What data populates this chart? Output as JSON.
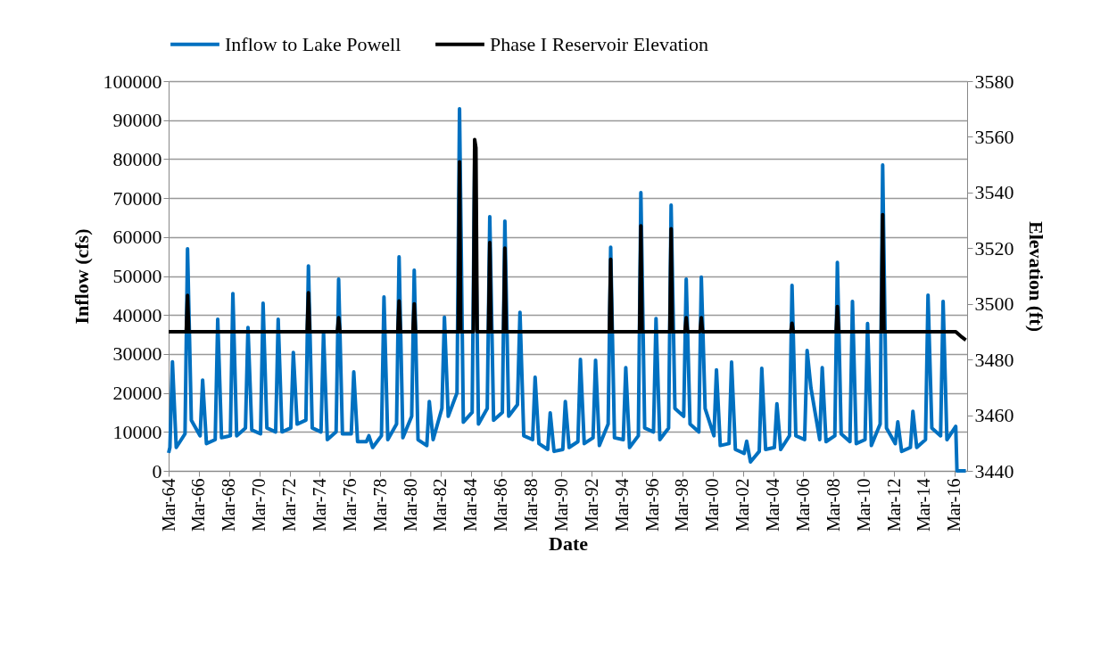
{
  "chart_data": {
    "type": "line",
    "xlabel": "Date",
    "ylabel": "Inflow (cfs)",
    "y2label": "Elevation (ft)",
    "xlim": [
      "1964-03",
      "2017-01"
    ],
    "xticks": [
      {
        "value": "1964-03",
        "label": "Mar-64"
      },
      {
        "value": "1966-03",
        "label": "Mar-66"
      },
      {
        "value": "1968-03",
        "label": "Mar-68"
      },
      {
        "value": "1970-03",
        "label": "Mar-70"
      },
      {
        "value": "1972-03",
        "label": "Mar-72"
      },
      {
        "value": "1974-03",
        "label": "Mar-74"
      },
      {
        "value": "1976-03",
        "label": "Mar-76"
      },
      {
        "value": "1978-03",
        "label": "Mar-78"
      },
      {
        "value": "1980-03",
        "label": "Mar-80"
      },
      {
        "value": "1982-03",
        "label": "Mar-82"
      },
      {
        "value": "1984-03",
        "label": "Mar-84"
      },
      {
        "value": "1986-03",
        "label": "Mar-86"
      },
      {
        "value": "1988-03",
        "label": "Mar-88"
      },
      {
        "value": "1990-03",
        "label": "Mar-90"
      },
      {
        "value": "1992-03",
        "label": "Mar-92"
      },
      {
        "value": "1994-03",
        "label": "Mar-94"
      },
      {
        "value": "1996-03",
        "label": "Mar-96"
      },
      {
        "value": "1998-03",
        "label": "Mar-98"
      },
      {
        "value": "2000-03",
        "label": "Mar-00"
      },
      {
        "value": "2002-03",
        "label": "Mar-02"
      },
      {
        "value": "2004-03",
        "label": "Mar-04"
      },
      {
        "value": "2006-03",
        "label": "Mar-06"
      },
      {
        "value": "2008-03",
        "label": "Mar-08"
      },
      {
        "value": "2010-03",
        "label": "Mar-10"
      },
      {
        "value": "2012-03",
        "label": "Mar-12"
      },
      {
        "value": "2014-03",
        "label": "Mar-14"
      },
      {
        "value": "2016-03",
        "label": "Mar-16"
      }
    ],
    "ylim": [
      0,
      100000
    ],
    "yticks": [
      0,
      10000,
      20000,
      30000,
      40000,
      50000,
      60000,
      70000,
      80000,
      90000,
      100000
    ],
    "y2lim": [
      3440,
      3580
    ],
    "y2ticks": [
      3440,
      3460,
      3480,
      3500,
      3520,
      3540,
      3560,
      3580
    ],
    "grid": "y",
    "legend": "top",
    "line_style": "solid",
    "series": [
      {
        "name": "Inflow to Lake Powell",
        "color": "#0070c0",
        "x": [
          "1964-03",
          "1964-04",
          "1964-06",
          "1964-09",
          "1965-04",
          "1965-06",
          "1965-09",
          "1966-04",
          "1966-06",
          "1966-09",
          "1967-04",
          "1967-06",
          "1967-09",
          "1968-04",
          "1968-06",
          "1968-09",
          "1969-04",
          "1969-06",
          "1969-09",
          "1970-04",
          "1970-06",
          "1970-09",
          "1971-04",
          "1971-06",
          "1971-09",
          "1972-04",
          "1972-06",
          "1972-09",
          "1973-04",
          "1973-06",
          "1973-09",
          "1974-04",
          "1974-06",
          "1974-09",
          "1975-04",
          "1975-06",
          "1975-09",
          "1976-04",
          "1976-06",
          "1976-09",
          "1977-04",
          "1977-06",
          "1977-09",
          "1978-04",
          "1978-06",
          "1978-09",
          "1979-04",
          "1979-06",
          "1979-09",
          "1980-04",
          "1980-06",
          "1980-09",
          "1981-04",
          "1981-06",
          "1981-09",
          "1982-04",
          "1982-06",
          "1982-09",
          "1983-04",
          "1983-06",
          "1983-09",
          "1984-04",
          "1984-06",
          "1984-09",
          "1985-04",
          "1985-06",
          "1985-09",
          "1986-04",
          "1986-06",
          "1986-09",
          "1987-04",
          "1987-06",
          "1987-09",
          "1988-04",
          "1988-06",
          "1988-09",
          "1989-04",
          "1989-06",
          "1989-09",
          "1990-04",
          "1990-06",
          "1990-09",
          "1991-04",
          "1991-06",
          "1991-09",
          "1992-04",
          "1992-06",
          "1992-09",
          "1993-04",
          "1993-06",
          "1993-09",
          "1994-04",
          "1994-06",
          "1994-09",
          "1995-04",
          "1995-06",
          "1995-09",
          "1996-04",
          "1996-06",
          "1996-09",
          "1997-04",
          "1997-06",
          "1997-09",
          "1998-04",
          "1998-06",
          "1998-09",
          "1999-04",
          "1999-06",
          "1999-09",
          "2000-04",
          "2000-06",
          "2000-09",
          "2001-04",
          "2001-06",
          "2001-09",
          "2002-04",
          "2002-06",
          "2002-09",
          "2003-04",
          "2003-06",
          "2003-09",
          "2004-04",
          "2004-06",
          "2004-09",
          "2005-04",
          "2005-06",
          "2005-09",
          "2006-04",
          "2006-06",
          "2006-09",
          "2007-04",
          "2007-06",
          "2007-09",
          "2008-04",
          "2008-06",
          "2008-09",
          "2009-04",
          "2009-06",
          "2009-09",
          "2010-04",
          "2010-06",
          "2010-09",
          "2011-04",
          "2011-06",
          "2011-09",
          "2012-04",
          "2012-06",
          "2012-09",
          "2013-04",
          "2013-06",
          "2013-09",
          "2014-04",
          "2014-06",
          "2014-09",
          "2015-04",
          "2015-06",
          "2015-09",
          "2016-04",
          "2016-05",
          "2016-12"
        ],
        "values": [
          4600,
          6000,
          28000,
          6000,
          9500,
          57000,
          13000,
          9000,
          23300,
          7000,
          8000,
          38900,
          8500,
          9000,
          45500,
          9000,
          11000,
          36800,
          10500,
          9500,
          43000,
          11000,
          10000,
          38900,
          10000,
          11000,
          30400,
          12000,
          13000,
          52600,
          11000,
          10000,
          35700,
          8000,
          10000,
          49200,
          9500,
          9500,
          25400,
          7500,
          7500,
          9000,
          6000,
          9000,
          44600,
          8000,
          12000,
          54900,
          8500,
          14000,
          51500,
          8000,
          6500,
          17800,
          8000,
          16000,
          39400,
          14000,
          20000,
          92900,
          12500,
          15000,
          80000,
          12000,
          16000,
          65200,
          13000,
          15000,
          64100,
          14000,
          17000,
          40700,
          9000,
          8000,
          24000,
          7000,
          5500,
          14900,
          5000,
          5500,
          17800,
          6000,
          7500,
          28600,
          7000,
          8500,
          28400,
          6500,
          12000,
          57400,
          8500,
          8000,
          26500,
          6000,
          9000,
          71400,
          11000,
          10000,
          39100,
          8000,
          11000,
          68200,
          16000,
          14000,
          49200,
          12000,
          10000,
          49700,
          16000,
          9000,
          25900,
          6500,
          7000,
          27900,
          5500,
          4500,
          7600,
          2300,
          5000,
          26300,
          5500,
          6000,
          17200,
          5500,
          9000,
          47600,
          9000,
          8000,
          30900,
          21300,
          8000,
          26500,
          7500,
          9000,
          53500,
          9500,
          7500,
          43500,
          7000,
          8000,
          37800,
          6500,
          12000,
          78500,
          11000,
          7000,
          12600,
          5000,
          6000,
          15300,
          6000,
          8000,
          45100,
          11000,
          9000,
          43500,
          8000,
          11400,
          0,
          0
        ]
      },
      {
        "name": "Phase I Reservoir Elevation",
        "color": "#000000",
        "axis": "y2",
        "x": [
          "1964-03",
          "1965-05",
          "1965-06",
          "1965-07",
          "1973-05",
          "1973-06",
          "1973-07",
          "1975-05",
          "1975-06",
          "1975-07",
          "1979-05",
          "1979-06",
          "1979-07",
          "1980-05",
          "1980-06",
          "1980-07",
          "1983-05",
          "1983-06",
          "1983-07",
          "1984-05",
          "1984-06",
          "1984-07",
          "1984-08",
          "1985-05",
          "1985-06",
          "1985-07",
          "1986-05",
          "1986-06",
          "1986-07",
          "1993-05",
          "1993-06",
          "1993-07",
          "1995-05",
          "1995-06",
          "1995-07",
          "1997-05",
          "1997-06",
          "1997-07",
          "1998-05",
          "1998-06",
          "1998-07",
          "1999-05",
          "1999-06",
          "1999-07",
          "2005-05",
          "2005-06",
          "2005-07",
          "2008-05",
          "2008-06",
          "2008-07",
          "2011-05",
          "2011-06",
          "2011-07",
          "2016-04",
          "2016-09",
          "2016-12"
        ],
        "values": [
          3490,
          3490,
          3503,
          3490,
          3490,
          3504,
          3490,
          3490,
          3495,
          3490,
          3490,
          3501,
          3490,
          3490,
          3500,
          3490,
          3490,
          3551,
          3490,
          3490,
          3559,
          3556,
          3490,
          3490,
          3522,
          3490,
          3490,
          3520,
          3490,
          3490,
          3516,
          3490,
          3490,
          3528,
          3490,
          3490,
          3527,
          3490,
          3490,
          3495,
          3490,
          3490,
          3495,
          3490,
          3490,
          3493,
          3490,
          3490,
          3499,
          3490,
          3490,
          3532,
          3490,
          3490,
          3488,
          3487
        ]
      }
    ]
  }
}
